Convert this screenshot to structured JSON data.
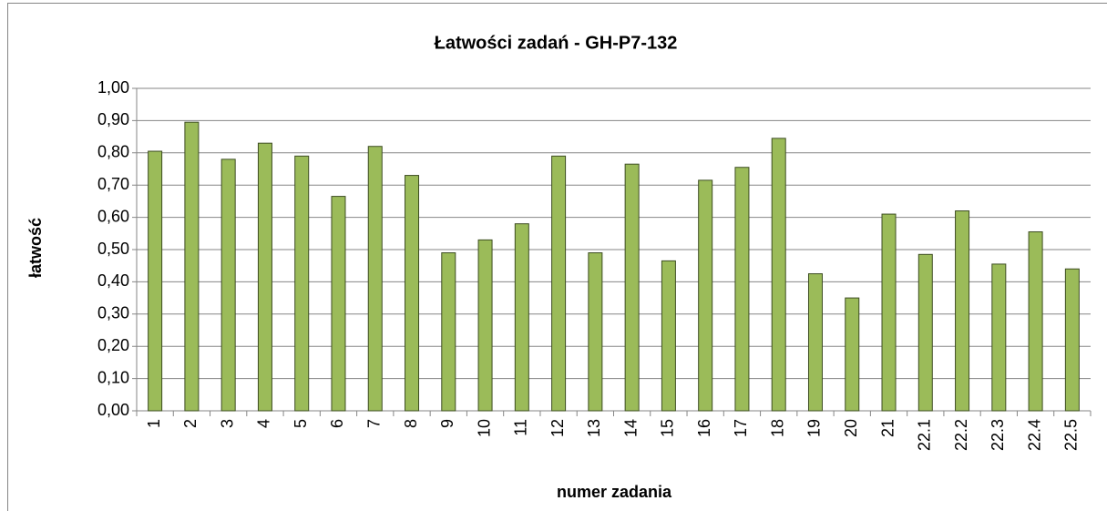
{
  "chart_data": {
    "type": "bar",
    "title": "Łatwości zadań - GH-P7-132",
    "x_label": "numer zadania",
    "y_label": "łatwość",
    "categories": [
      "1",
      "2",
      "3",
      "4",
      "5",
      "6",
      "7",
      "8",
      "9",
      "10",
      "11",
      "12",
      "13",
      "14",
      "15",
      "16",
      "17",
      "18",
      "19",
      "20",
      "21",
      "22.1",
      "22.2",
      "22.3",
      "22.4",
      "22.5"
    ],
    "values": [
      0.805,
      0.895,
      0.78,
      0.83,
      0.79,
      0.665,
      0.82,
      0.73,
      0.49,
      0.53,
      0.58,
      0.79,
      0.49,
      0.765,
      0.465,
      0.715,
      0.755,
      0.845,
      0.425,
      0.35,
      0.61,
      0.485,
      0.62,
      0.455,
      0.555,
      0.44
    ],
    "color": "#9bbb59",
    "ylim": [
      0,
      1
    ],
    "yticks": [
      {
        "value": 0,
        "label": "0,00"
      },
      {
        "value": 0.1,
        "label": "0,10"
      },
      {
        "value": 0.2,
        "label": "0,20"
      },
      {
        "value": 0.3,
        "label": "0,30"
      },
      {
        "value": 0.4,
        "label": "0,40"
      },
      {
        "value": 0.5,
        "label": "0,50"
      },
      {
        "value": 0.6,
        "label": "0,60"
      },
      {
        "value": 0.7,
        "label": "0,70"
      },
      {
        "value": 0.8,
        "label": "0,80"
      },
      {
        "value": 0.9,
        "label": "0,90"
      },
      {
        "value": 1,
        "label": "1,00"
      }
    ],
    "grid": true
  }
}
